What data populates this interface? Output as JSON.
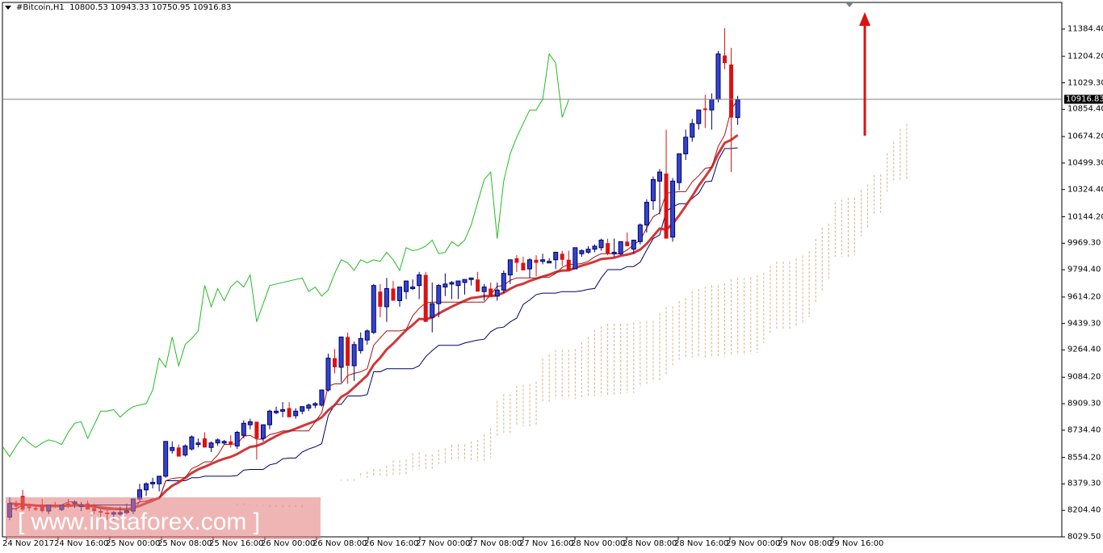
{
  "header": {
    "symbol": "#Bitcoin,H1",
    "ohlc": "10800.53 10943.33 10750.95 10916.83",
    "open": 10800.53,
    "high": 10943.33,
    "low": 10750.95,
    "close": 10916.83
  },
  "current_price_label": "10916.83",
  "watermark": "[ www.instaforex.com ]",
  "colors": {
    "bull_candle": "#3344cc",
    "bear_candle": "#dd1111",
    "tenkan": "#aa1111",
    "kijun": "#cc2222",
    "chinkou": "#22bb22",
    "senkou_b": "#000066",
    "cloud": "#d2b48c",
    "arrow": "#dd1111",
    "price_line": "#808080"
  },
  "chart_data": {
    "type": "candlestick",
    "title": "#Bitcoin,H1",
    "timeframe": "H1",
    "indicators": [
      "Ichimoku Kinko Hyo (Tenkan-sen, Kijun-sen, Chinkou Span, Senkou Span A/B cloud)"
    ],
    "yaxis": {
      "ticks": [
        11384.4,
        11204.2,
        11029.3,
        10854.4,
        10674.2,
        10499.3,
        10324.4,
        10144.2,
        9969.3,
        9794.4,
        9614.2,
        9439.3,
        9264.4,
        9084.2,
        8909.3,
        8734.4,
        8554.2,
        8379.3,
        8204.4,
        8029.5
      ],
      "tick_labels": [
        "11384.40",
        "11204.20",
        "11029.30",
        "10854.40",
        "10674.20",
        "10499.30",
        "10324.40",
        "10144.20",
        "9969.30",
        "9794.40",
        "9614.20",
        "9439.30",
        "9264.40",
        "9084.20",
        "8909.30",
        "8734.40",
        "8554.20",
        "8379.30",
        "8204.40",
        "8029.50"
      ],
      "range": [
        8029.5,
        11384.4
      ]
    },
    "xaxis": {
      "tick_labels": [
        "24 Nov 2017",
        "24 Nov 16:00",
        "25 Nov 00:00",
        "25 Nov 08:00",
        "25 Nov 16:00",
        "26 Nov 00:00",
        "26 Nov 08:00",
        "26 Nov 16:00",
        "27 Nov 00:00",
        "27 Nov 08:00",
        "27 Nov 16:00",
        "28 Nov 00:00",
        "28 Nov 08:00",
        "28 Nov 16:00",
        "29 Nov 00:00",
        "29 Nov 08:00",
        "29 Nov 16:00"
      ],
      "tick_x": [
        8,
        72,
        136,
        200,
        264,
        328,
        392,
        456,
        520,
        584,
        648,
        712,
        776,
        840,
        904,
        968,
        1032
      ]
    },
    "last_close": 10916.83,
    "annotation": "Red upward arrow projecting further rise above 11384",
    "candles": [
      [
        8160,
        8290,
        8140,
        8250
      ],
      [
        8250,
        8270,
        8200,
        8230
      ],
      [
        8300,
        8340,
        8200,
        8210
      ],
      [
        8230,
        8250,
        8200,
        8220
      ],
      [
        8220,
        8240,
        8200,
        8210
      ],
      [
        8240,
        8280,
        8190,
        8200
      ],
      [
        8200,
        8240,
        8180,
        8240
      ],
      [
        8240,
        8260,
        8220,
        8230
      ],
      [
        8210,
        8240,
        8200,
        8240
      ],
      [
        8250,
        8280,
        8220,
        8240
      ],
      [
        8250,
        8270,
        8220,
        8260
      ],
      [
        8230,
        8260,
        8200,
        8240
      ],
      [
        8250,
        8270,
        8230,
        8210
      ],
      [
        8220,
        8250,
        8180,
        8200
      ],
      [
        8200,
        8220,
        8150,
        8190
      ],
      [
        8190,
        8210,
        8140,
        8180
      ],
      [
        8180,
        8200,
        8140,
        8190
      ],
      [
        8190,
        8230,
        8170,
        8190
      ],
      [
        8200,
        8250,
        8180,
        8200
      ],
      [
        8200,
        8280,
        8180,
        8280
      ],
      [
        8280,
        8380,
        8260,
        8340
      ],
      [
        8340,
        8390,
        8300,
        8380
      ],
      [
        8380,
        8420,
        8350,
        8390
      ],
      [
        8380,
        8420,
        8330,
        8430
      ],
      [
        8430,
        8660,
        8420,
        8660
      ],
      [
        8600,
        8660,
        8580,
        8620
      ],
      [
        8620,
        8640,
        8560,
        8560
      ],
      [
        8570,
        8640,
        8560,
        8630
      ],
      [
        8610,
        8700,
        8600,
        8690
      ],
      [
        8650,
        8680,
        8620,
        8650
      ],
      [
        8680,
        8720,
        8640,
        8620
      ],
      [
        8620,
        8660,
        8590,
        8650
      ],
      [
        8650,
        8680,
        8630,
        8670
      ],
      [
        8650,
        8670,
        8640,
        8660
      ],
      [
        8660,
        8700,
        8620,
        8640
      ],
      [
        8630,
        8730,
        8610,
        8720
      ],
      [
        8700,
        8800,
        8680,
        8780
      ],
      [
        8770,
        8810,
        8740,
        8790
      ],
      [
        8790,
        8760,
        8540,
        8680
      ],
      [
        8680,
        8760,
        8660,
        8770
      ],
      [
        8770,
        8870,
        8740,
        8860
      ],
      [
        8850,
        8890,
        8840,
        8860
      ],
      [
        8870,
        8920,
        8820,
        8870
      ],
      [
        8880,
        8920,
        8830,
        8820
      ],
      [
        8830,
        8880,
        8810,
        8860
      ],
      [
        8860,
        8880,
        8840,
        8890
      ],
      [
        8880,
        8910,
        8860,
        8900
      ],
      [
        8900,
        8920,
        8880,
        8910
      ],
      [
        8900,
        8960,
        8890,
        9000
      ],
      [
        9000,
        9240,
        8990,
        9210
      ],
      [
        9210,
        9270,
        9110,
        9150
      ],
      [
        9150,
        9260,
        9050,
        9350
      ],
      [
        9350,
        9380,
        9040,
        9160
      ],
      [
        9160,
        9320,
        9060,
        9300
      ],
      [
        9260,
        9380,
        9240,
        9340
      ],
      [
        9330,
        9400,
        9300,
        9390
      ],
      [
        9380,
        9700,
        9370,
        9690
      ],
      [
        9650,
        9700,
        9480,
        9550
      ],
      [
        9550,
        9740,
        9450,
        9670
      ],
      [
        9670,
        9720,
        9610,
        9590
      ],
      [
        9590,
        9660,
        9550,
        9680
      ],
      [
        9650,
        9720,
        9600,
        9720
      ],
      [
        9680,
        9730,
        9660,
        9680
      ],
      [
        9690,
        9780,
        9600,
        9760
      ],
      [
        9760,
        9780,
        9450,
        9450
      ],
      [
        9480,
        9710,
        9380,
        9570
      ],
      [
        9570,
        9700,
        9480,
        9690
      ],
      [
        9680,
        9770,
        9620,
        9700
      ],
      [
        9700,
        9720,
        9600,
        9710
      ],
      [
        9690,
        9720,
        9600,
        9720
      ],
      [
        9710,
        9720,
        9630,
        9730
      ],
      [
        9730,
        9740,
        9690,
        9740
      ],
      [
        9730,
        9780,
        9650,
        9650
      ],
      [
        9650,
        9700,
        9590,
        9680
      ],
      [
        9670,
        9710,
        9660,
        9620
      ],
      [
        9620,
        9710,
        9590,
        9660
      ],
      [
        9660,
        9790,
        9640,
        9770
      ],
      [
        9760,
        9860,
        9700,
        9860
      ],
      [
        9870,
        9890,
        9780,
        9840
      ],
      [
        9840,
        9880,
        9830,
        9790
      ],
      [
        9800,
        9870,
        9740,
        9860
      ],
      [
        9860,
        9890,
        9750,
        9840
      ],
      [
        9850,
        9900,
        9830,
        9860
      ],
      [
        9840,
        9870,
        9860,
        9850
      ],
      [
        9860,
        9900,
        9800,
        9910
      ],
      [
        9900,
        9920,
        9820,
        9860
      ],
      [
        9860,
        9920,
        9800,
        9790
      ],
      [
        9800,
        9880,
        9810,
        9940
      ],
      [
        9900,
        9930,
        9880,
        9920
      ],
      [
        9910,
        9950,
        9900,
        9930
      ],
      [
        9930,
        9960,
        9910,
        9950
      ],
      [
        9940,
        10000,
        9920,
        9990
      ],
      [
        9970,
        10000,
        9890,
        9900
      ],
      [
        9900,
        10000,
        9880,
        9910
      ],
      [
        9900,
        9980,
        9890,
        9980
      ],
      [
        9980,
        10040,
        9950,
        9950
      ],
      [
        9930,
        9990,
        9900,
        9990
      ],
      [
        9980,
        10100,
        9960,
        10090
      ],
      [
        10090,
        10260,
        10040,
        10240
      ],
      [
        10250,
        10410,
        10190,
        10390
      ],
      [
        10380,
        10460,
        10160,
        10440
      ],
      [
        10430,
        10720,
        10220,
        10000
      ],
      [
        10010,
        10400,
        9980,
        10380
      ],
      [
        10370,
        10560,
        10320,
        10560
      ],
      [
        10560,
        10720,
        10520,
        10670
      ],
      [
        10670,
        10790,
        10640,
        10760
      ],
      [
        10760,
        10850,
        10720,
        10850
      ],
      [
        10860,
        10950,
        10730,
        10850
      ],
      [
        10850,
        10960,
        10720,
        10920
      ],
      [
        10920,
        11240,
        10900,
        11220
      ],
      [
        11210,
        11390,
        11120,
        11160
      ],
      [
        11150,
        11260,
        10440,
        10800
      ],
      [
        10800,
        10943,
        10751,
        10917
      ]
    ]
  }
}
